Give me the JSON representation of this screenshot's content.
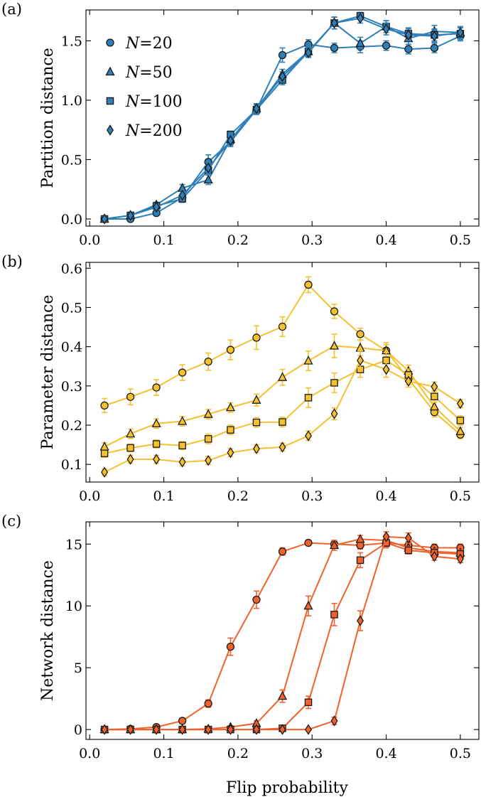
{
  "figure": {
    "xlabel": "Flip probability"
  },
  "chart_data": [
    {
      "type": "line",
      "panel_label": "(a)",
      "title": "",
      "xlabel": "",
      "ylabel": "Partition distance",
      "xlim": [
        -0.005,
        0.525
      ],
      "ylim": [
        -0.06,
        1.76
      ],
      "xticks": [
        "0.0",
        "0.1",
        "0.2",
        "0.3",
        "0.4",
        "0.5"
      ],
      "yticks": [
        "0.0",
        "0.5",
        "1.0",
        "1.5"
      ],
      "color": "#2f7fb8",
      "legend": {
        "placement": "top-left"
      },
      "x": [
        0.02,
        0.055,
        0.09,
        0.125,
        0.16,
        0.19,
        0.225,
        0.26,
        0.295,
        0.33,
        0.365,
        0.4,
        0.43,
        0.465,
        0.5
      ],
      "series": [
        {
          "name": "N=20",
          "marker": "circle",
          "values": [
            0.0,
            0.0,
            0.05,
            0.18,
            0.48,
            0.65,
            0.92,
            1.38,
            1.47,
            1.44,
            1.45,
            1.46,
            1.43,
            1.44,
            1.54
          ],
          "errors": [
            0.02,
            0.02,
            0.02,
            0.03,
            0.06,
            0.04,
            0.04,
            0.06,
            0.04,
            0.04,
            0.05,
            0.04,
            0.04,
            0.04,
            0.04
          ]
        },
        {
          "name": "N=50",
          "marker": "triangle",
          "values": [
            0.0,
            0.03,
            0.12,
            0.26,
            0.33,
            0.67,
            0.93,
            1.22,
            1.41,
            1.65,
            1.48,
            1.62,
            1.52,
            1.58,
            1.57
          ],
          "errors": [
            0.02,
            0.02,
            0.02,
            0.03,
            0.04,
            0.04,
            0.04,
            0.04,
            0.04,
            0.05,
            0.05,
            0.05,
            0.05,
            0.05,
            0.05
          ]
        },
        {
          "name": "N=100",
          "marker": "square",
          "values": [
            0.0,
            0.03,
            0.11,
            0.17,
            0.41,
            0.71,
            0.92,
            1.17,
            1.41,
            1.65,
            1.71,
            1.62,
            1.56,
            1.55,
            1.56
          ],
          "errors": [
            0.02,
            0.02,
            0.02,
            0.03,
            0.04,
            0.03,
            0.04,
            0.04,
            0.04,
            0.05,
            0.03,
            0.05,
            0.05,
            0.05,
            0.05
          ]
        },
        {
          "name": "N=200",
          "marker": "diamond",
          "values": [
            0.0,
            0.03,
            0.1,
            0.2,
            0.43,
            0.66,
            0.93,
            1.2,
            1.4,
            1.65,
            1.69,
            1.6,
            1.55,
            1.54,
            1.57
          ],
          "errors": [
            0.02,
            0.02,
            0.02,
            0.03,
            0.05,
            0.04,
            0.04,
            0.04,
            0.04,
            0.05,
            0.04,
            0.05,
            0.05,
            0.05,
            0.05
          ]
        }
      ]
    },
    {
      "type": "line",
      "panel_label": "(b)",
      "title": "",
      "xlabel": "",
      "ylabel": "Parameter distance",
      "xlim": [
        -0.005,
        0.525
      ],
      "ylim": [
        0.055,
        0.615
      ],
      "xticks": [
        "0.0",
        "0.1",
        "0.2",
        "0.3",
        "0.4",
        "0.5"
      ],
      "yticks": [
        "0.1",
        "0.2",
        "0.3",
        "0.4",
        "0.5",
        "0.6"
      ],
      "color": "#f5c12e",
      "x": [
        0.02,
        0.055,
        0.09,
        0.125,
        0.16,
        0.19,
        0.225,
        0.26,
        0.295,
        0.33,
        0.365,
        0.4,
        0.43,
        0.465,
        0.5
      ],
      "series": [
        {
          "marker": "circle",
          "values": [
            0.25,
            0.272,
            0.296,
            0.334,
            0.362,
            0.392,
            0.423,
            0.451,
            0.558,
            0.49,
            0.432,
            0.39,
            0.318,
            0.233,
            0.176
          ],
          "errors": [
            0.018,
            0.02,
            0.02,
            0.02,
            0.022,
            0.025,
            0.03,
            0.025,
            0.02,
            0.018,
            0.015,
            0.015,
            0.015,
            0.012,
            0.01
          ]
        },
        {
          "marker": "triangle",
          "values": [
            0.145,
            0.178,
            0.204,
            0.21,
            0.228,
            0.245,
            0.264,
            0.322,
            0.364,
            0.402,
            0.397,
            0.39,
            0.338,
            0.247,
            0.184
          ],
          "errors": [
            0.01,
            0.012,
            0.012,
            0.012,
            0.012,
            0.012,
            0.015,
            0.02,
            0.025,
            0.03,
            0.02,
            0.02,
            0.015,
            0.012,
            0.01
          ]
        },
        {
          "marker": "square",
          "values": [
            0.128,
            0.142,
            0.152,
            0.148,
            0.165,
            0.188,
            0.207,
            0.208,
            0.27,
            0.308,
            0.342,
            0.365,
            0.328,
            0.273,
            0.212
          ],
          "errors": [
            0.01,
            0.01,
            0.01,
            0.01,
            0.012,
            0.012,
            0.012,
            0.012,
            0.025,
            0.025,
            0.02,
            0.02,
            0.015,
            0.015,
            0.012
          ]
        },
        {
          "marker": "diamond",
          "values": [
            0.08,
            0.113,
            0.113,
            0.106,
            0.11,
            0.13,
            0.14,
            0.144,
            0.173,
            0.229,
            0.365,
            0.342,
            0.312,
            0.298,
            0.255
          ],
          "errors": [
            0.008,
            0.01,
            0.01,
            0.01,
            0.01,
            0.01,
            0.01,
            0.01,
            0.012,
            0.015,
            0.025,
            0.02,
            0.015,
            0.012,
            0.01
          ]
        }
      ]
    },
    {
      "type": "line",
      "panel_label": "(c)",
      "title": "",
      "xlabel": "Flip probability",
      "ylabel": "Network distance",
      "xlim": [
        -0.005,
        0.525
      ],
      "ylim": [
        -0.8,
        16.8
      ],
      "xticks": [
        "0.0",
        "0.1",
        "0.2",
        "0.3",
        "0.4",
        "0.5"
      ],
      "yticks": [
        "0",
        "5",
        "10",
        "15"
      ],
      "color": "#f0622c",
      "x": [
        0.02,
        0.055,
        0.09,
        0.125,
        0.16,
        0.19,
        0.225,
        0.26,
        0.295,
        0.33,
        0.365,
        0.4,
        0.43,
        0.465,
        0.5
      ],
      "series": [
        {
          "marker": "circle",
          "values": [
            0.0,
            0.05,
            0.2,
            0.7,
            2.1,
            6.7,
            10.5,
            14.4,
            15.1,
            15.0,
            14.9,
            15.1,
            14.9,
            14.7,
            14.7
          ],
          "errors": [
            0.1,
            0.1,
            0.15,
            0.2,
            0.3,
            0.7,
            0.7,
            0.3,
            0.2,
            0.3,
            0.3,
            0.3,
            0.3,
            0.3,
            0.3
          ]
        },
        {
          "marker": "triangle",
          "values": [
            0.0,
            0.0,
            0.0,
            0.0,
            0.05,
            0.2,
            0.5,
            2.7,
            10.0,
            14.9,
            15.4,
            15.3,
            14.7,
            14.4,
            14.3
          ],
          "errors": [
            0.05,
            0.05,
            0.05,
            0.05,
            0.1,
            0.1,
            0.2,
            0.5,
            0.8,
            0.4,
            0.3,
            0.4,
            0.3,
            0.3,
            0.3
          ]
        },
        {
          "marker": "square",
          "values": [
            0.0,
            0.0,
            0.0,
            0.0,
            0.0,
            0.0,
            0.0,
            0.1,
            2.2,
            9.3,
            13.7,
            15.1,
            14.5,
            14.3,
            14.2
          ],
          "errors": [
            0.05,
            0.05,
            0.05,
            0.05,
            0.05,
            0.05,
            0.05,
            0.1,
            0.5,
            0.9,
            0.6,
            0.4,
            0.3,
            0.3,
            0.3
          ]
        },
        {
          "marker": "diamond",
          "values": [
            0.0,
            0.0,
            0.0,
            0.0,
            0.0,
            0.0,
            0.0,
            0.0,
            0.0,
            0.7,
            8.8,
            15.6,
            15.5,
            14.0,
            13.8
          ],
          "errors": [
            0.05,
            0.05,
            0.05,
            0.05,
            0.05,
            0.05,
            0.05,
            0.05,
            0.05,
            0.3,
            0.8,
            0.4,
            0.4,
            0.3,
            0.3
          ]
        }
      ]
    }
  ]
}
